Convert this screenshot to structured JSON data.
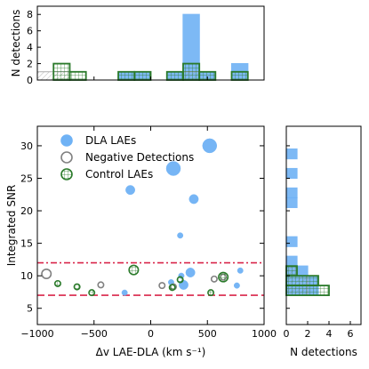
{
  "colors": {
    "dla_fill": "#6fb2f5",
    "dla_edge": "#6fb2f5",
    "neg_edge": "#808080",
    "ctrl_edge": "#2a7a2a",
    "ctrl_hatch": "#2a7a2a",
    "neg_hatch": "#999999",
    "line_red": "#d9264a",
    "axis": "#000000"
  },
  "chart_data": [
    {
      "id": "main-scatter",
      "type": "scatter",
      "xlabel": "Δv LAE-DLA (km s⁻¹)",
      "ylabel": "Integrated SNR",
      "xlim": [
        -1000,
        1000
      ],
      "ylim": [
        2.5,
        33
      ],
      "xticks": [
        -1000,
        -500,
        0,
        500,
        1000
      ],
      "xtick_labels": [
        "−1000",
        "−500",
        "0",
        "500",
        "1000"
      ],
      "yticks": [
        5,
        10,
        15,
        20,
        25,
        30
      ],
      "ytick_labels": [
        "5",
        "10",
        "15",
        "20",
        "25",
        "30"
      ],
      "legend_position": "top-left",
      "legend": [
        {
          "label": "DLA LAEs",
          "marker": "filled-circle"
        },
        {
          "label": "Negative Detections",
          "marker": "gray-ring"
        },
        {
          "label": "Control LAEs",
          "marker": "green-ring"
        }
      ],
      "hlines": [
        {
          "y": 12,
          "style": "dashdot"
        },
        {
          "y": 7,
          "style": "dashed"
        }
      ],
      "series": [
        {
          "name": "DLA LAEs",
          "points": [
            {
              "x": 520,
              "y": 30,
              "size": 3
            },
            {
              "x": 200,
              "y": 26.5,
              "size": 3
            },
            {
              "x": -180,
              "y": 23.2,
              "size": 2
            },
            {
              "x": 380,
              "y": 21.8,
              "size": 2
            },
            {
              "x": 260,
              "y": 16.2,
              "size": 1
            },
            {
              "x": 350,
              "y": 10.5,
              "size": 2
            },
            {
              "x": 270,
              "y": 10.0,
              "size": 1
            },
            {
              "x": 180,
              "y": 9.0,
              "size": 1
            },
            {
              "x": 290,
              "y": 8.6,
              "size": 2
            },
            {
              "x": 790,
              "y": 10.8,
              "size": 1
            },
            {
              "x": 760,
              "y": 8.5,
              "size": 1
            },
            {
              "x": -230,
              "y": 7.4,
              "size": 1
            }
          ]
        },
        {
          "name": "Negative Detections",
          "points": [
            {
              "x": -920,
              "y": 10.3,
              "size": 2
            },
            {
              "x": -440,
              "y": 8.6,
              "size": 1
            },
            {
              "x": 100,
              "y": 8.5,
              "size": 1
            },
            {
              "x": 200,
              "y": 8.3,
              "size": 1
            },
            {
              "x": 560,
              "y": 9.5,
              "size": 1
            },
            {
              "x": 640,
              "y": 9.8,
              "size": 1
            }
          ]
        },
        {
          "name": "Control LAEs",
          "points": [
            {
              "x": -820,
              "y": 8.8,
              "size": 1
            },
            {
              "x": -650,
              "y": 8.3,
              "size": 1
            },
            {
              "x": -520,
              "y": 7.4,
              "size": 1
            },
            {
              "x": -150,
              "y": 10.9,
              "size": 2
            },
            {
              "x": 190,
              "y": 8.2,
              "size": 1
            },
            {
              "x": 260,
              "y": 9.4,
              "size": 1
            },
            {
              "x": 530,
              "y": 7.4,
              "size": 1
            },
            {
              "x": 640,
              "y": 9.8,
              "size": 2
            }
          ]
        }
      ]
    },
    {
      "id": "top-histogram",
      "type": "bar",
      "ylabel": "N detections",
      "xlim": [
        -1000,
        1000
      ],
      "ylim": [
        0,
        9
      ],
      "yticks": [
        0,
        2,
        4,
        6,
        8
      ],
      "ytick_labels": [
        "0",
        "2",
        "4",
        "6",
        "8"
      ],
      "bin_edges": [
        -1000,
        -857,
        -714,
        -571,
        -429,
        -286,
        -143,
        0,
        143,
        286,
        429,
        571,
        714,
        857,
        1000
      ],
      "series": [
        {
          "name": "DLA LAEs",
          "values": [
            0,
            0,
            0,
            0,
            0,
            1,
            1,
            0,
            1,
            8,
            1,
            0,
            2,
            0
          ]
        },
        {
          "name": "Control LAEs",
          "values": [
            0,
            2,
            1,
            0,
            0,
            1,
            1,
            0,
            1,
            2,
            1,
            0,
            1,
            0
          ]
        },
        {
          "name": "Negative Detections",
          "values": [
            1,
            1,
            0,
            0,
            0,
            0,
            0,
            0,
            0,
            1,
            0,
            0,
            0,
            0
          ]
        }
      ]
    },
    {
      "id": "right-histogram",
      "type": "bar",
      "orientation": "horizontal",
      "xlabel": "N detections",
      "xlim": [
        0,
        7
      ],
      "xticks": [
        0,
        2,
        4,
        6
      ],
      "xtick_labels": [
        "0",
        "2",
        "4",
        "6"
      ],
      "ylim": [
        2.5,
        33
      ],
      "bin_edges": [
        7.0,
        8.5,
        10.0,
        11.5,
        13.0,
        14.5,
        16.0,
        17.5,
        19.0,
        20.5,
        22.0,
        23.5,
        25.0,
        26.5,
        28.0,
        29.5,
        31.0
      ],
      "series": [
        {
          "name": "DLA LAEs",
          "values": [
            3,
            3,
            2,
            1,
            0,
            1,
            0,
            0,
            0,
            1,
            1,
            0,
            1,
            0,
            1,
            0
          ]
        },
        {
          "name": "Control LAEs",
          "values": [
            4,
            3,
            1,
            0,
            0,
            0,
            0,
            0,
            0,
            0,
            0,
            0,
            0,
            0,
            0,
            0
          ]
        },
        {
          "name": "Negative Detections",
          "values": [
            2,
            2,
            1,
            0,
            0,
            0,
            0,
            0,
            0,
            0,
            0,
            0,
            0,
            0,
            0,
            0
          ]
        }
      ]
    }
  ]
}
